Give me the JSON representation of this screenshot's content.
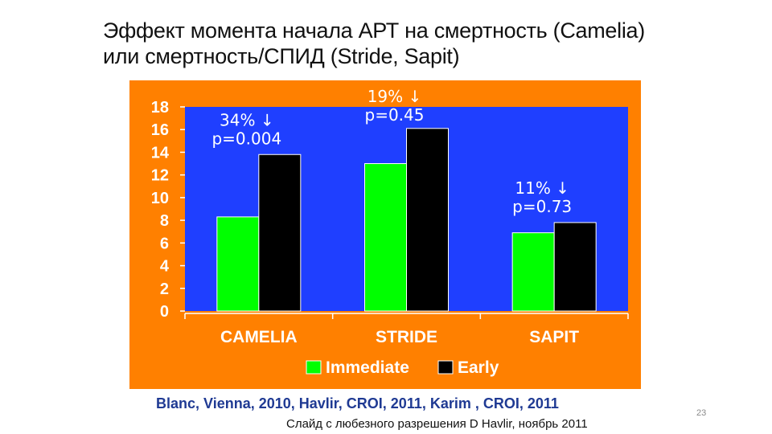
{
  "slide": {
    "title_line1": "Эффект момента начала АРТ на смертность  (Camelia)",
    "title_line2": "или смертность/СПИД (Stride, Sapit)",
    "reference": "Blanc, Vienna, 2010, Havlir, CROI, 2011, Karim , CROI, 2011",
    "credit": "Слайд с любезного разрешения D Havlir, ноябрь 2011",
    "slide_number": "23"
  },
  "colors": {
    "panel": "#ff8000",
    "plot_area": "#1f3fff",
    "immediate": "#00ff00",
    "early": "#000000",
    "axis_text": "#ffffff",
    "annotation_text": "#ffffff"
  },
  "chart_data": {
    "type": "bar",
    "categories": [
      "CAMELIA",
      "STRIDE",
      "SAPIT"
    ],
    "series": [
      {
        "name": "Immediate",
        "values": [
          8.3,
          13.0,
          6.9
        ]
      },
      {
        "name": "Early",
        "values": [
          13.8,
          16.1,
          7.8
        ]
      }
    ],
    "ylim": [
      0,
      18
    ],
    "yticks": [
      0,
      2,
      4,
      6,
      8,
      10,
      12,
      14,
      16,
      18
    ],
    "grid": false,
    "legend_position": "bottom",
    "annotations": [
      {
        "category": "CAMELIA",
        "line1": "34% ↓",
        "line2": "p=0.004"
      },
      {
        "category": "STRIDE",
        "line1": "19% ↓",
        "line2": "p=0.45"
      },
      {
        "category": "SAPIT",
        "line1": "11% ↓",
        "line2": "p=0.73"
      }
    ]
  }
}
